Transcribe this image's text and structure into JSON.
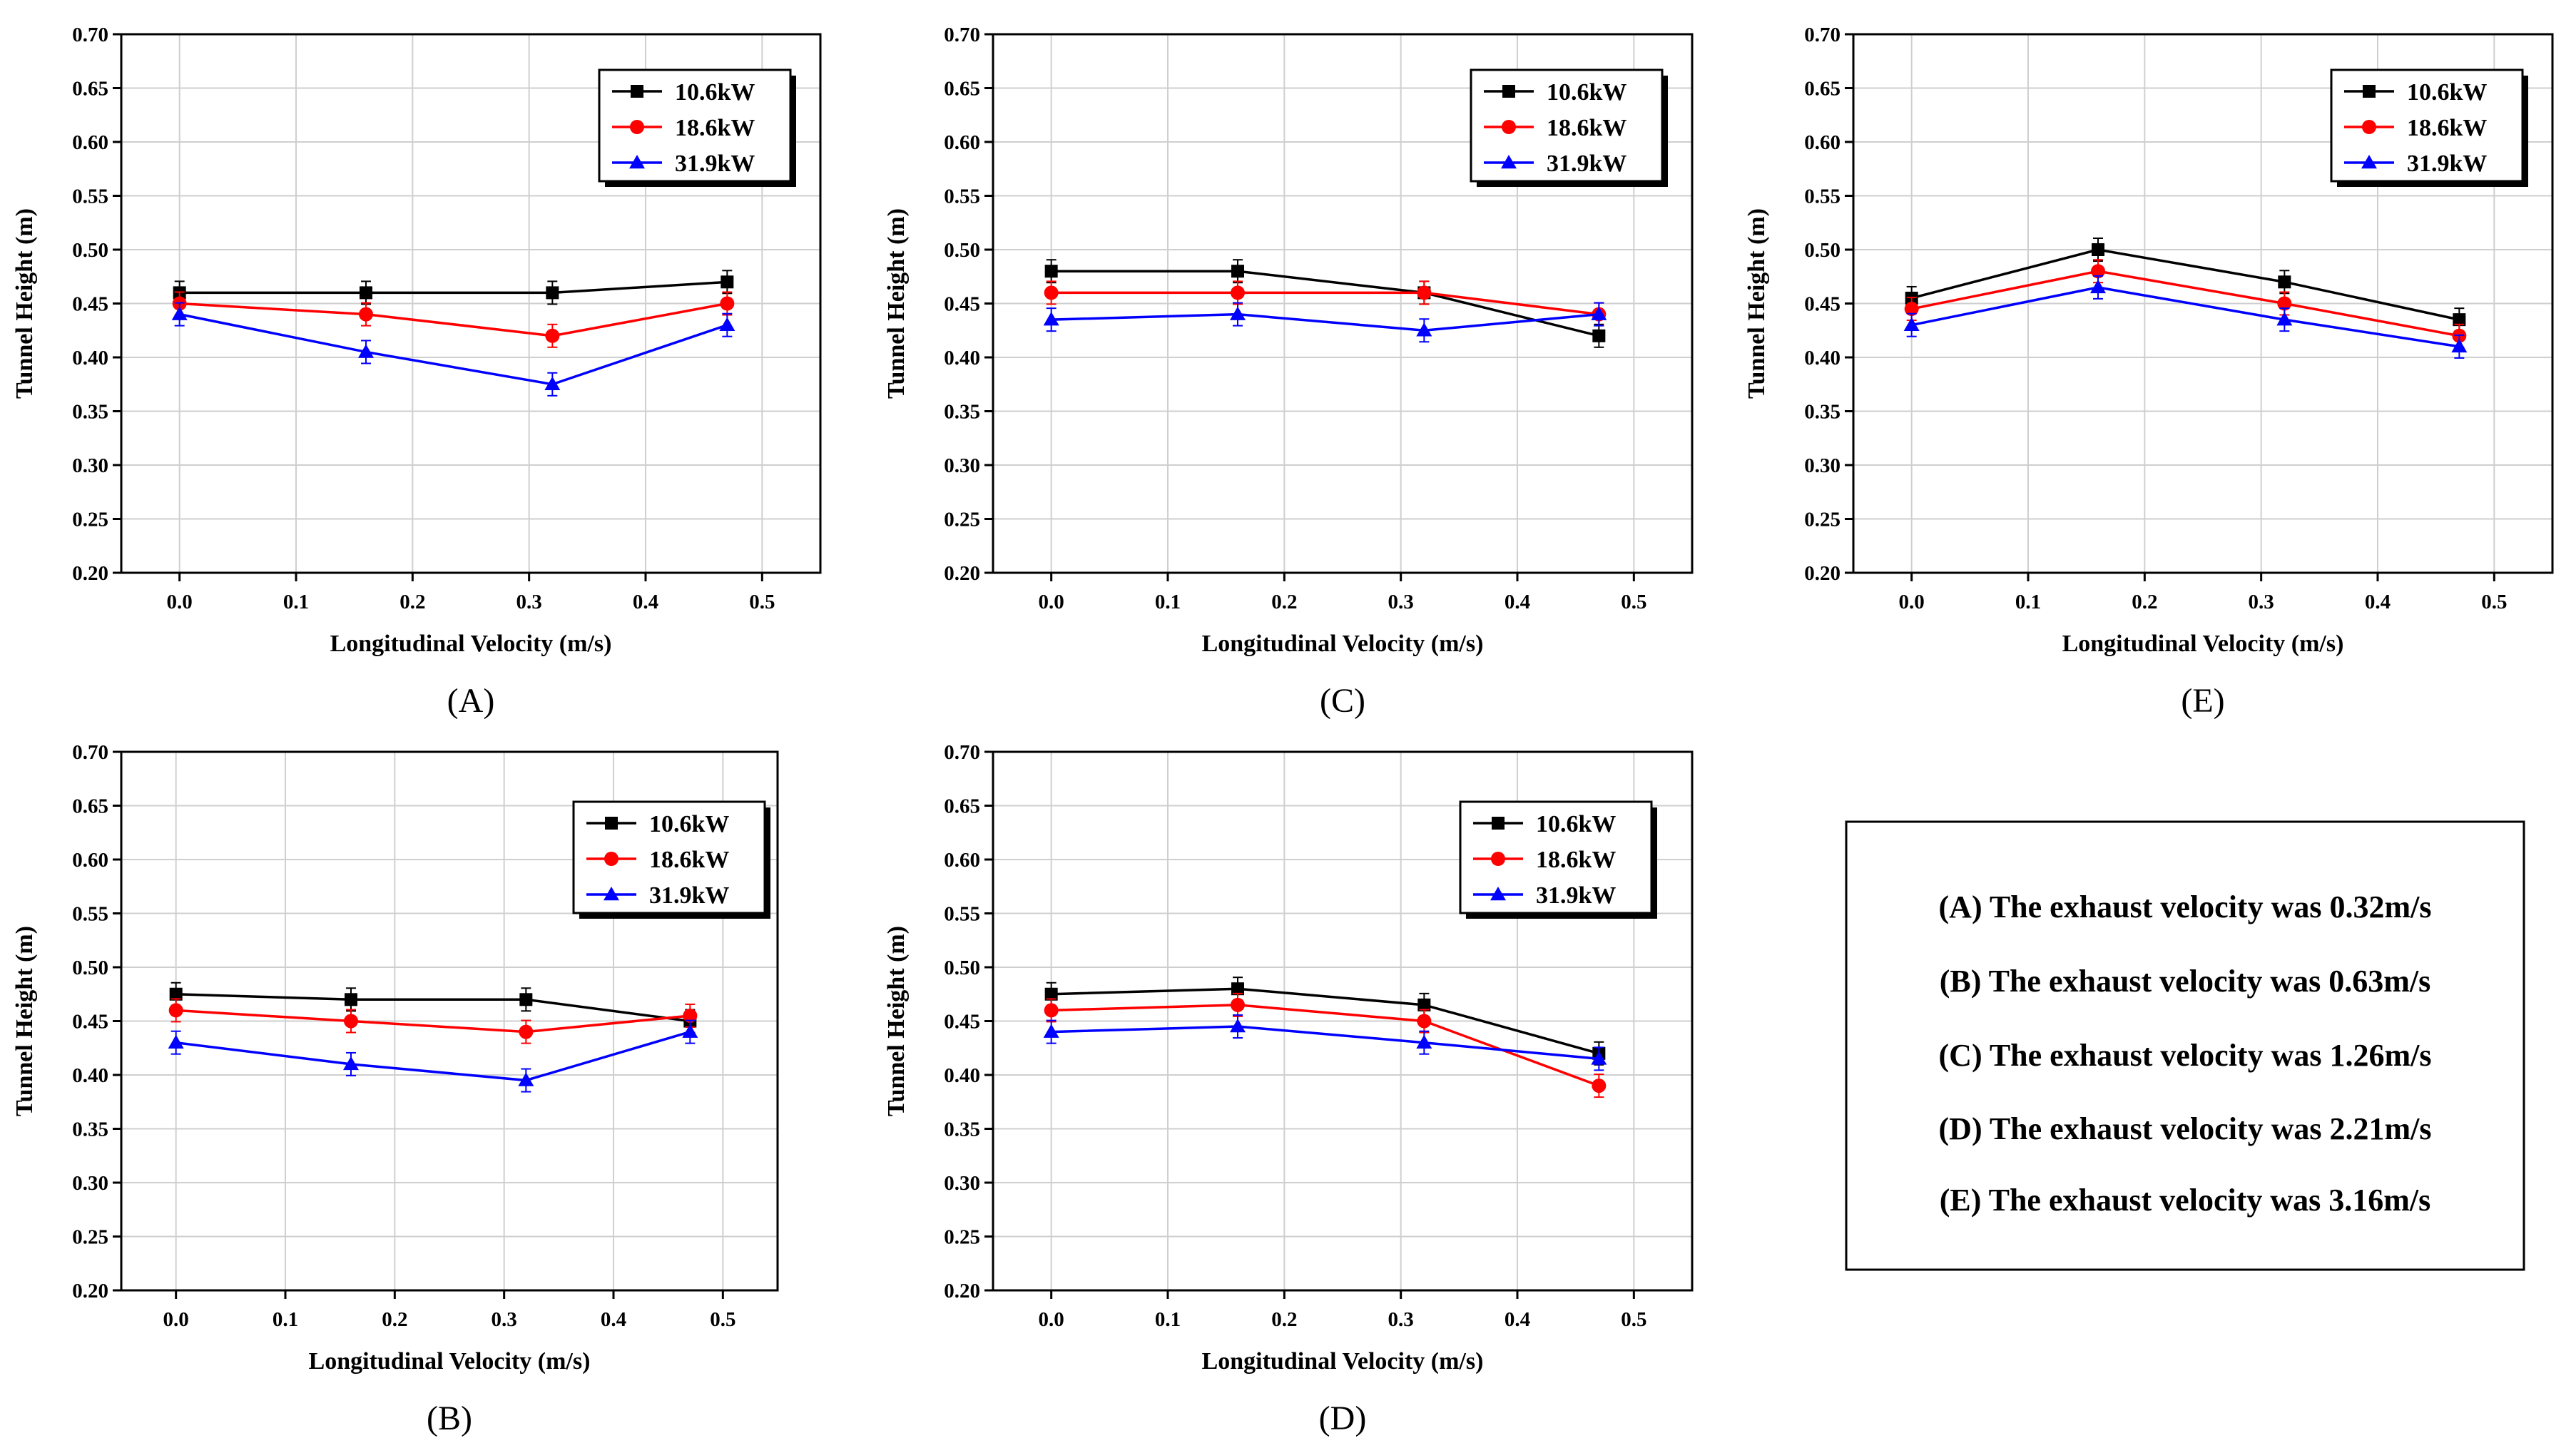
{
  "series_colors": {
    "10.6kW": "#000000",
    "18.6kW": "#ff0000",
    "31.9kW": "#0000ff"
  },
  "chart_data": [
    {
      "panel": "(A)",
      "type": "line",
      "xlabel": "Longitudinal Velocity (m/s)",
      "ylabel": "Tunnel Height (m)",
      "xlim": [
        -0.05,
        0.55
      ],
      "ylim": [
        0.2,
        0.7
      ],
      "xticks": [
        "0.0",
        "0.1",
        "0.2",
        "0.3",
        "0.4",
        "0.5"
      ],
      "yticks": [
        "0.20",
        "0.25",
        "0.30",
        "0.35",
        "0.40",
        "0.45",
        "0.50",
        "0.55",
        "0.60",
        "0.65",
        "0.70"
      ],
      "x": [
        0,
        0.16,
        0.32,
        0.47
      ],
      "grid": true,
      "legend": "top-right",
      "series": [
        {
          "name": "10.6kW",
          "marker": "square",
          "values": [
            0.46,
            0.46,
            0.46,
            0.47
          ]
        },
        {
          "name": "18.6kW",
          "marker": "circle",
          "values": [
            0.45,
            0.44,
            0.42,
            0.45
          ]
        },
        {
          "name": "31.9kW",
          "marker": "triangle",
          "values": [
            0.44,
            0.405,
            0.375,
            0.43
          ]
        }
      ]
    },
    {
      "panel": "(C)",
      "type": "line",
      "xlabel": "Longitudinal Velocity (m/s)",
      "ylabel": "Tunnel Height (m)",
      "xlim": [
        -0.05,
        0.55
      ],
      "ylim": [
        0.2,
        0.7
      ],
      "xticks": [
        "0.0",
        "0.1",
        "0.2",
        "0.3",
        "0.4",
        "0.5"
      ],
      "yticks": [
        "0.20",
        "0.25",
        "0.30",
        "0.35",
        "0.40",
        "0.45",
        "0.50",
        "0.55",
        "0.60",
        "0.65",
        "0.70"
      ],
      "x": [
        0,
        0.16,
        0.32,
        0.47
      ],
      "grid": true,
      "legend": "top-right",
      "series": [
        {
          "name": "10.6kW",
          "marker": "square",
          "values": [
            0.48,
            0.48,
            0.46,
            0.42
          ]
        },
        {
          "name": "18.6kW",
          "marker": "circle",
          "values": [
            0.46,
            0.46,
            0.46,
            0.44
          ]
        },
        {
          "name": "31.9kW",
          "marker": "triangle",
          "values": [
            0.435,
            0.44,
            0.425,
            0.44
          ]
        }
      ]
    },
    {
      "panel": "(E)",
      "type": "line",
      "xlabel": "Longitudinal Velocity (m/s)",
      "ylabel": "Tunnel Height (m)",
      "xlim": [
        -0.05,
        0.55
      ],
      "ylim": [
        0.2,
        0.7
      ],
      "xticks": [
        "0.0",
        "0.1",
        "0.2",
        "0.3",
        "0.4",
        "0.5"
      ],
      "yticks": [
        "0.20",
        "0.25",
        "0.30",
        "0.35",
        "0.40",
        "0.45",
        "0.50",
        "0.55",
        "0.60",
        "0.65",
        "0.70"
      ],
      "x": [
        0,
        0.16,
        0.32,
        0.47
      ],
      "grid": true,
      "legend": "top-right",
      "series": [
        {
          "name": "10.6kW",
          "marker": "square",
          "values": [
            0.455,
            0.5,
            0.47,
            0.435
          ]
        },
        {
          "name": "18.6kW",
          "marker": "circle",
          "values": [
            0.445,
            0.48,
            0.45,
            0.42
          ]
        },
        {
          "name": "31.9kW",
          "marker": "triangle",
          "values": [
            0.43,
            0.465,
            0.435,
            0.41
          ]
        }
      ]
    },
    {
      "panel": "(B)",
      "type": "line",
      "xlabel": "Longitudinal Velocity (m/s)",
      "ylabel": "Tunnel Height (m)",
      "xlim": [
        -0.05,
        0.55
      ],
      "ylim": [
        0.2,
        0.7
      ],
      "xticks": [
        "0.0",
        "0.1",
        "0.2",
        "0.3",
        "0.4",
        "0.5"
      ],
      "yticks": [
        "0.20",
        "0.25",
        "0.30",
        "0.35",
        "0.40",
        "0.45",
        "0.50",
        "0.55",
        "0.60",
        "0.65",
        "0.70"
      ],
      "x": [
        0,
        0.16,
        0.32,
        0.47
      ],
      "grid": true,
      "legend": "top-right",
      "series": [
        {
          "name": "10.6kW",
          "marker": "square",
          "values": [
            0.475,
            0.47,
            0.47,
            0.45
          ]
        },
        {
          "name": "18.6kW",
          "marker": "circle",
          "values": [
            0.46,
            0.45,
            0.44,
            0.455
          ]
        },
        {
          "name": "31.9kW",
          "marker": "triangle",
          "values": [
            0.43,
            0.41,
            0.395,
            0.44
          ]
        }
      ]
    },
    {
      "panel": "(D)",
      "type": "line",
      "xlabel": "Longitudinal Velocity (m/s)",
      "ylabel": "Tunnel Height (m)",
      "xlim": [
        -0.05,
        0.55
      ],
      "ylim": [
        0.2,
        0.7
      ],
      "xticks": [
        "0.0",
        "0.1",
        "0.2",
        "0.3",
        "0.4",
        "0.5"
      ],
      "yticks": [
        "0.20",
        "0.25",
        "0.30",
        "0.35",
        "0.40",
        "0.45",
        "0.50",
        "0.55",
        "0.60",
        "0.65",
        "0.70"
      ],
      "x": [
        0,
        0.16,
        0.32,
        0.47
      ],
      "grid": true,
      "legend": "top-left",
      "series": [
        {
          "name": "10.6kW",
          "marker": "square",
          "values": [
            0.475,
            0.48,
            0.465,
            0.42
          ]
        },
        {
          "name": "18.6kW",
          "marker": "circle",
          "values": [
            0.46,
            0.465,
            0.45,
            0.39
          ]
        },
        {
          "name": "31.9kW",
          "marker": "triangle",
          "values": [
            0.44,
            0.445,
            0.43,
            0.415
          ]
        }
      ]
    }
  ],
  "note_box": {
    "lines": [
      "(A) The exhaust velocity was 0.32m/s",
      "(B) The exhaust velocity was 0.63m/s",
      "(C) The exhaust velocity was 1.26m/s",
      "(D) The exhaust velocity was 2.21m/s",
      "(E) The exhaust velocity was 3.16m/s"
    ]
  }
}
